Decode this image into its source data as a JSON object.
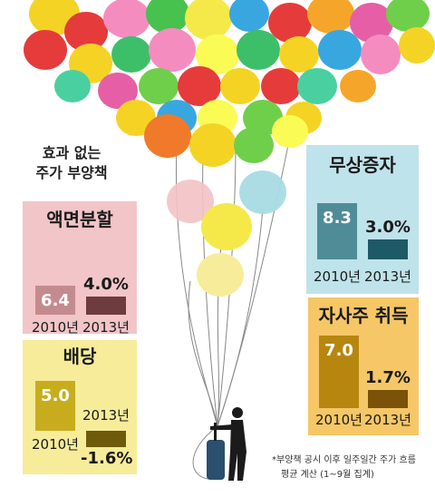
{
  "headline": [
    "효과 없는",
    "주가 부양책"
  ],
  "footnote": [
    "*부양책 공시 이후 일주일간 주가 흐름",
    "평균 계산 (1~9월 집계)"
  ],
  "colors": {
    "split_bg": "#f2c5c8",
    "split_bar_old": "#c48b8e",
    "split_bar_new": "#6e3b3e",
    "capital_bg": "#bfe3ea",
    "capital_bar_old": "#4f8c98",
    "capital_bar_new": "#1d5a66",
    "buyback_bg": "#f5c766",
    "buyback_bar_old": "#b7860f",
    "buyback_bar_new": "#7a5209",
    "dividend_bg": "#f7ec9a",
    "dividend_bar_old": "#c7ad1e",
    "dividend_bar_new": "#6e5a0b"
  },
  "chart_data": [
    {
      "type": "bar",
      "title": "액면분할",
      "categories": [
        "2010년",
        "2013년"
      ],
      "values": [
        6.4,
        4.0
      ],
      "value_labels": [
        "6.4",
        "4.0%"
      ]
    },
    {
      "type": "bar",
      "title": "무상증자",
      "categories": [
        "2010년",
        "2013년"
      ],
      "values": [
        8.3,
        3.0
      ],
      "value_labels": [
        "8.3",
        "3.0%"
      ]
    },
    {
      "type": "bar",
      "title": "자사주 취득",
      "categories": [
        "2010년",
        "2013년"
      ],
      "values": [
        7.0,
        1.7
      ],
      "value_labels": [
        "7.0",
        "1.7%"
      ]
    },
    {
      "type": "bar",
      "title": "배당",
      "categories": [
        "2010년",
        "2013년"
      ],
      "values": [
        5.0,
        -1.6
      ],
      "value_labels": [
        "5.0",
        "-1.6%"
      ]
    }
  ]
}
